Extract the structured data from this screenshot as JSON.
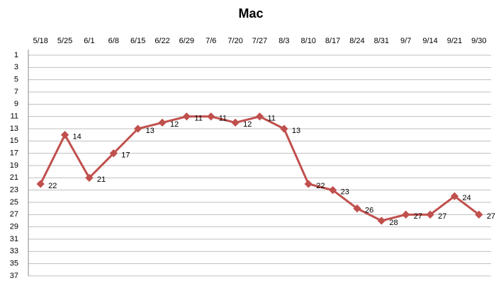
{
  "chart_data": {
    "type": "line",
    "title": "Mac",
    "categories": [
      "5/18",
      "5/25",
      "6/1",
      "6/8",
      "6/15",
      "6/22",
      "6/29",
      "7/6",
      "7/20",
      "7/27",
      "8/3",
      "8/10",
      "8/17",
      "8/24",
      "8/31",
      "9/7",
      "9/14",
      "9/21",
      "9/30"
    ],
    "series": [
      {
        "name": "Mac",
        "color": "#c0504d",
        "values": [
          22,
          14,
          21,
          17,
          13,
          12,
          11,
          11,
          12,
          11,
          13,
          22,
          23,
          26,
          28,
          27,
          27,
          24,
          27
        ]
      }
    ],
    "ylim": [
      1,
      37
    ],
    "y_inverted": true,
    "yticks": [
      1,
      3,
      5,
      7,
      9,
      11,
      13,
      15,
      17,
      19,
      21,
      23,
      25,
      27,
      29,
      31,
      33,
      35,
      37
    ],
    "grid": true,
    "legend": false
  }
}
